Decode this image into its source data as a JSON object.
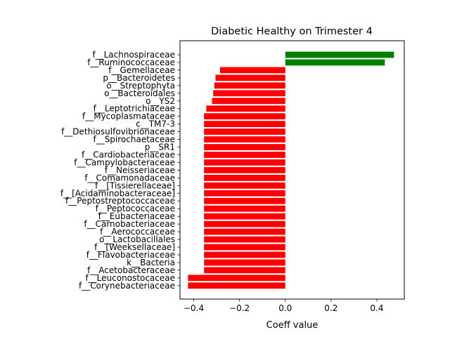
{
  "chart_data": {
    "type": "bar",
    "orientation": "horizontal",
    "title": "Diabetic Healthy on Trimester 4",
    "xlabel": "Coeff value",
    "ylabel": "",
    "xlim": [
      -0.46,
      0.52
    ],
    "xticks": [
      -0.4,
      -0.2,
      0.0,
      0.2,
      0.4
    ],
    "xtick_labels": [
      "−0.4",
      "−0.2",
      "0.0",
      "0.2",
      "0.4"
    ],
    "grid": false,
    "colors": {
      "positive": "#008000",
      "negative": "#ff0000"
    },
    "categories": [
      "f__Lachnospiraceae",
      "f__Ruminococcaceae",
      "f__Gemellaceae",
      "p__Bacteroidetes",
      "o__Streptophyta",
      "o__Bacteroidales",
      "o__YS2",
      "f__Leptotrichiaceae",
      "f__Mycoplasmataceae",
      "c__TM7-3",
      "f__Dethiosulfovibrionaceae",
      "f__Spirochaetaceae",
      "p__SR1",
      "f__Cardiobacteriaceae",
      "f__Campylobacteraceae",
      "f__Neisseriaceae",
      "f__Comamonadaceae",
      "f__[Tissierellaceae]",
      "f__[Acidaminobacteraceae]",
      "f__Peptostreptococcaceae",
      "f__Peptococcaceae",
      "f__Eubacteriaceae",
      "f__Carnobacteriaceae",
      "f__Aerococcaceae",
      "o__Lactobacillales",
      "f__[Weeksellaceae]",
      "f__Flavobacteriaceae",
      "k__Bacteria",
      "f__Acetobacteraceae",
      "f__Leuconostocaceae",
      "f__Corynebacteriaceae"
    ],
    "values": [
      0.475,
      0.435,
      -0.285,
      -0.305,
      -0.31,
      -0.315,
      -0.32,
      -0.345,
      -0.355,
      -0.355,
      -0.355,
      -0.355,
      -0.355,
      -0.355,
      -0.355,
      -0.355,
      -0.355,
      -0.355,
      -0.355,
      -0.355,
      -0.355,
      -0.355,
      -0.355,
      -0.355,
      -0.355,
      -0.355,
      -0.355,
      -0.355,
      -0.355,
      -0.425,
      -0.425
    ]
  }
}
